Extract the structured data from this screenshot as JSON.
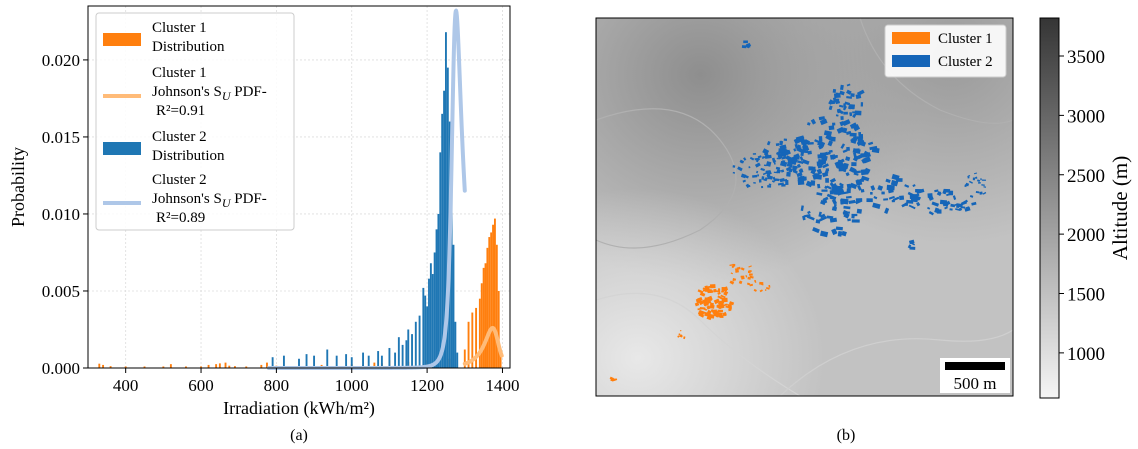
{
  "panels": {
    "a": {
      "caption": "(a)"
    },
    "b": {
      "caption": "(b)"
    }
  },
  "chart_data": [
    {
      "type": "histogram+line",
      "panel": "(a)",
      "xlabel": "Irradiation (kWh/m²)",
      "ylabel": "Probability",
      "xlim": [
        300,
        1420
      ],
      "ylim": [
        0,
        0.0235
      ],
      "xticks": [
        400,
        600,
        800,
        1000,
        1200,
        1400
      ],
      "yticks": [
        0.0,
        0.005,
        0.01,
        0.015,
        0.02
      ],
      "ytick_labels": [
        "0.000",
        "0.005",
        "0.010",
        "0.015",
        "0.020"
      ],
      "grid": true,
      "legend_position": "upper-left",
      "legend": [
        {
          "kind": "patch",
          "color": "#ff7f0e",
          "lines": [
            "Cluster 1",
            "Distribution"
          ]
        },
        {
          "kind": "line",
          "color": "#ffbb78",
          "lines": [
            "Cluster 1",
            "Johnson's S",
            "U",
            " PDF-",
            "R²=0.91"
          ]
        },
        {
          "kind": "patch",
          "color": "#1f77b4",
          "lines": [
            "Cluster 2",
            "Distribution"
          ]
        },
        {
          "kind": "line",
          "color": "#aec7e8",
          "lines": [
            "Cluster 2",
            "Johnson's S",
            "U",
            " PDF-",
            "R²=0.89"
          ]
        }
      ],
      "series": [
        {
          "name": "Cluster 1 Distribution",
          "kind": "hist",
          "color": "#ff7f0e",
          "bins": [
            [
              330,
              0.00028
            ],
            [
              340,
              0.0002
            ],
            [
              360,
              0.00012
            ],
            [
              400,
              0.0001
            ],
            [
              450,
              0.0001
            ],
            [
              500,
              0.0001
            ],
            [
              520,
              0.00025
            ],
            [
              560,
              0.0001
            ],
            [
              600,
              0.0001
            ],
            [
              620,
              0.0002
            ],
            [
              640,
              0.00025
            ],
            [
              650,
              0.0003
            ],
            [
              665,
              0.00035
            ],
            [
              675,
              0.00015
            ],
            [
              690,
              0.00012
            ],
            [
              720,
              0.0001
            ],
            [
              760,
              0.0002
            ],
            [
              775,
              0.00035
            ],
            [
              800,
              0.00015
            ],
            [
              830,
              0.0001
            ],
            [
              880,
              0.00015
            ],
            [
              900,
              0.00012
            ],
            [
              920,
              0.0002
            ],
            [
              950,
              0.0001
            ],
            [
              980,
              0.00012
            ],
            [
              1000,
              0.00025
            ],
            [
              1030,
              0.0002
            ],
            [
              1060,
              0.00035
            ],
            [
              1080,
              0.0003
            ],
            [
              1100,
              0.0005
            ],
            [
              1150,
              0.0004
            ],
            [
              1200,
              0.0005
            ],
            [
              1260,
              0.0006
            ],
            [
              1300,
              0.0012
            ],
            [
              1310,
              0.003
            ],
            [
              1320,
              0.0036
            ],
            [
              1330,
              0.0039
            ],
            [
              1340,
              0.0045
            ],
            [
              1345,
              0.0055
            ],
            [
              1350,
              0.0065
            ],
            [
              1355,
              0.0068
            ],
            [
              1360,
              0.0078
            ],
            [
              1365,
              0.0085
            ],
            [
              1370,
              0.0088
            ],
            [
              1375,
              0.0093
            ],
            [
              1380,
              0.0097
            ],
            [
              1385,
              0.008
            ],
            [
              1390,
              0.005
            ],
            [
              1395,
              0.001
            ]
          ]
        },
        {
          "name": "Cluster 1 Johnson's SU PDF",
          "kind": "line",
          "color": "#ffbb78",
          "model": "johnsonsu",
          "gamma": 0.8,
          "delta": 1.1,
          "xi": 1383,
          "lambda": 22,
          "scale": 0.0026,
          "domain": [
            1300,
            1398
          ]
        },
        {
          "name": "Cluster 2 Distribution",
          "kind": "hist",
          "color": "#1f77b4",
          "bins": [
            [
              790,
              0.0007
            ],
            [
              820,
              0.0008
            ],
            [
              860,
              0.0006
            ],
            [
              880,
              0.0009
            ],
            [
              900,
              0.0008
            ],
            [
              935,
              0.0012
            ],
            [
              960,
              0.0008
            ],
            [
              985,
              0.0009
            ],
            [
              1000,
              0.0007
            ],
            [
              1030,
              0.001
            ],
            [
              1045,
              0.0008
            ],
            [
              1070,
              0.0011
            ],
            [
              1080,
              0.0008
            ],
            [
              1100,
              0.0013
            ],
            [
              1115,
              0.001
            ],
            [
              1125,
              0.002
            ],
            [
              1135,
              0.0015
            ],
            [
              1145,
              0.0018
            ],
            [
              1150,
              0.0025
            ],
            [
              1160,
              0.0022
            ],
            [
              1170,
              0.003
            ],
            [
              1180,
              0.0034
            ],
            [
              1190,
              0.0052
            ],
            [
              1195,
              0.0047
            ],
            [
              1200,
              0.004
            ],
            [
              1205,
              0.0058
            ],
            [
              1210,
              0.0068
            ],
            [
              1215,
              0.0061
            ],
            [
              1220,
              0.0075
            ],
            [
              1225,
              0.009
            ],
            [
              1230,
              0.01
            ],
            [
              1235,
              0.014
            ],
            [
              1240,
              0.0165
            ],
            [
              1245,
              0.018
            ],
            [
              1250,
              0.0218
            ],
            [
              1255,
              0.0195
            ],
            [
              1260,
              0.016
            ],
            [
              1265,
              0.012
            ],
            [
              1270,
              0.008
            ],
            [
              1275,
              0.003
            ],
            [
              1280,
              0.001
            ]
          ]
        },
        {
          "name": "Cluster 2 Johnson's SU PDF",
          "kind": "line",
          "color": "#aec7e8",
          "model": "johnsonsu",
          "gamma": -0.9,
          "delta": 0.85,
          "xi": 1270,
          "lambda": 14,
          "scale": 0.0232,
          "domain": [
            780,
            1300
          ]
        }
      ]
    },
    {
      "type": "map",
      "panel": "(b)",
      "legend": [
        {
          "color": "#ff7f0e",
          "label": "Cluster 1"
        },
        {
          "color": "#1565b8",
          "label": "Cluster 2"
        }
      ],
      "scalebar_label": "500 m",
      "colorbar": {
        "label": "Altitude (m)",
        "range": [
          620,
          3820
        ],
        "ticks": [
          1000,
          1500,
          2000,
          2500,
          3000,
          3500
        ],
        "cmap": [
          "#f5f5f5",
          "#353535"
        ]
      }
    }
  ]
}
